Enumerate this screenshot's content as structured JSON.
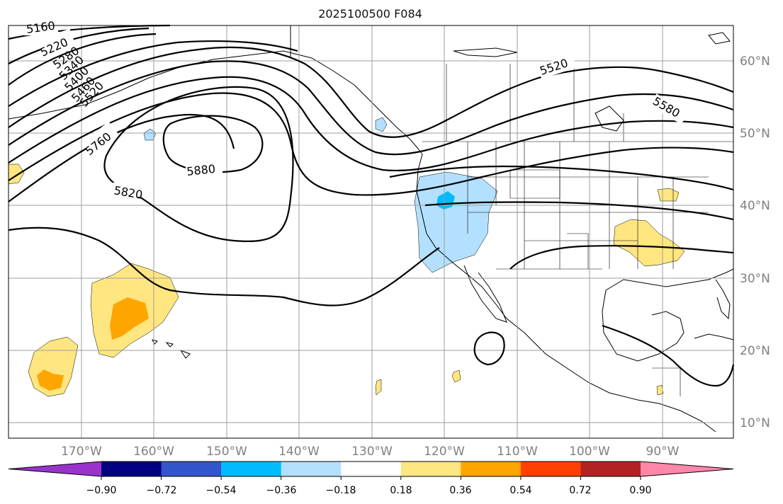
{
  "title": "2025100500 F084",
  "longitude_labels": [
    "170°W",
    "160°W",
    "150°W",
    "140°W",
    "130°W",
    "120°W",
    "110°W",
    "100°W",
    "90°W"
  ],
  "latitude_labels": [
    "60°N",
    "50°N",
    "40°N",
    "30°N",
    "20°N",
    "10°N"
  ],
  "contour_labels": [
    "5160",
    "5220",
    "5280",
    "5340",
    "5400",
    "5460",
    "5520",
    "5760",
    "5880",
    "5820",
    "5520",
    "5580"
  ],
  "colorbar": {
    "colors": [
      "#9933cc",
      "#000080",
      "#3355cc",
      "#00bbff",
      "#b3e0ff",
      "#ffffff",
      "#ffe680",
      "#ffa500",
      "#ff4000",
      "#b22222",
      "#ff88aa"
    ],
    "tick_labels": [
      "−0.90",
      "−0.72",
      "−0.54",
      "−0.36",
      "−0.18",
      "0.18",
      "0.36",
      "0.54",
      "0.72",
      "0.90"
    ]
  },
  "anomaly_colors": {
    "light_blue": "#b3e0ff",
    "blue": "#00bbff",
    "yellow": "#ffe680",
    "orange": "#ffa500"
  }
}
